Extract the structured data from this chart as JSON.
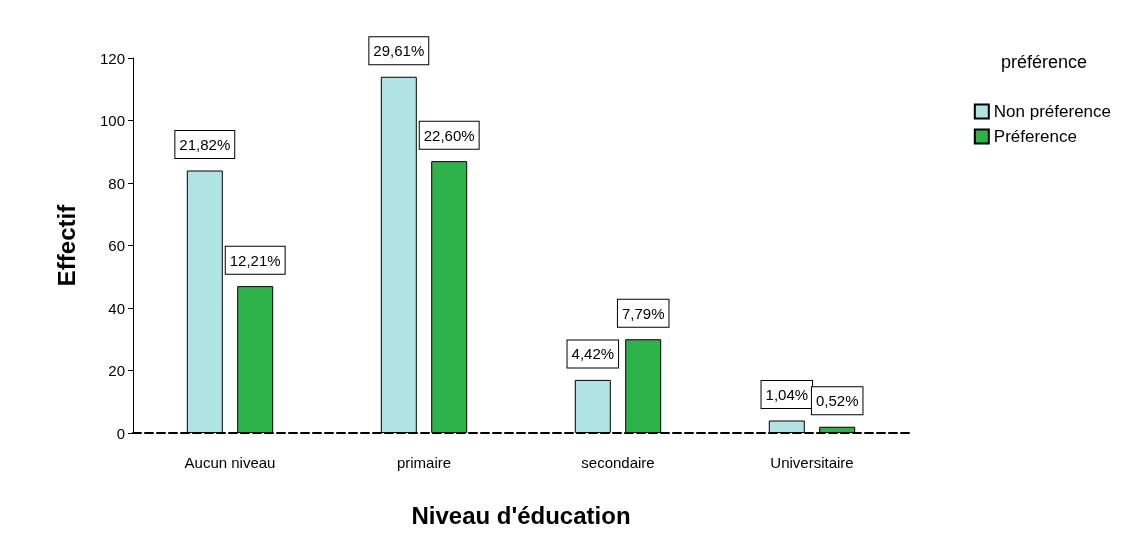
{
  "chart_data": {
    "type": "bar",
    "xlabel": "Niveau d'éducation",
    "ylabel": "Effectif",
    "legend_title": "préférence",
    "categories": [
      "Aucun niveau",
      "primaire",
      "secondaire",
      "Universitaire"
    ],
    "series": [
      {
        "name": "Non préference",
        "color": "#b0e4e4",
        "values": [
          84,
          114,
          17,
          4
        ]
      },
      {
        "name": "Préference",
        "color": "#2db34a",
        "values": [
          47,
          87,
          30,
          2
        ]
      }
    ],
    "annotations": [
      "21,82%",
      "12,21%",
      "29,61%",
      "22,60%",
      "4,42%",
      "7,79%",
      "1,04%",
      "0,52%"
    ],
    "ylim": [
      0,
      120
    ],
    "yticks": [
      0,
      20,
      40,
      60,
      80,
      100,
      120
    ],
    "grid": false,
    "legend": "top right"
  }
}
